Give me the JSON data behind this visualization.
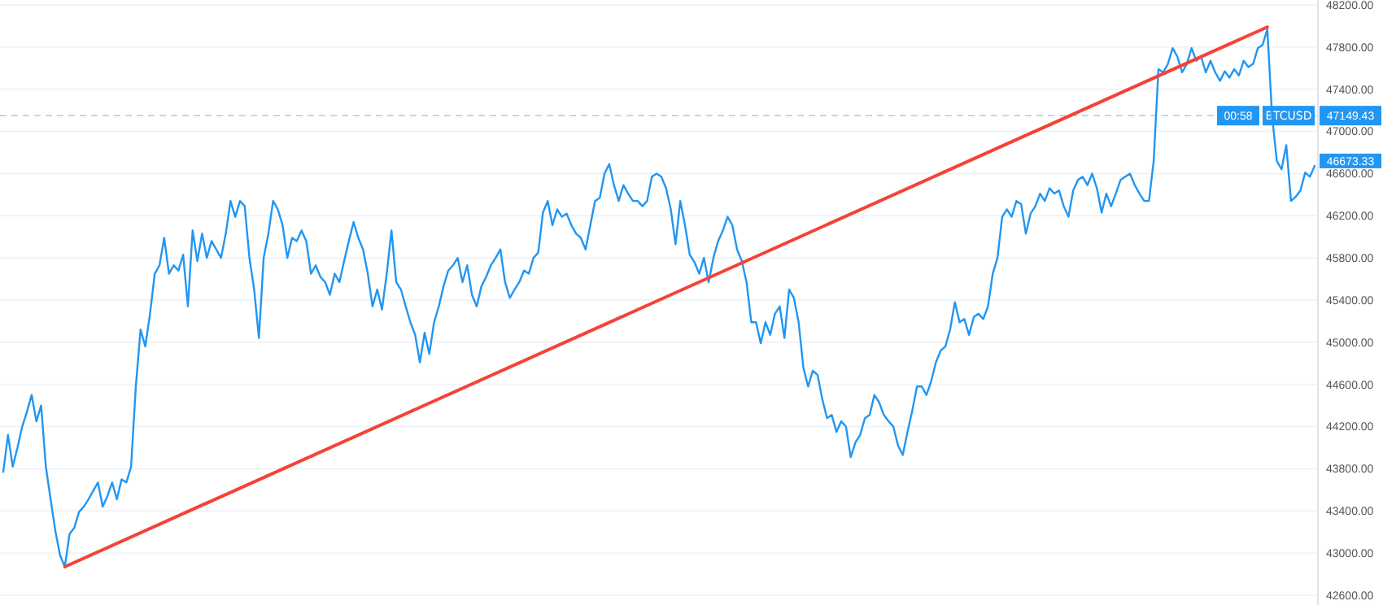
{
  "chart_data": {
    "type": "line",
    "categories": [
      null,
      null,
      null,
      null,
      null,
      null,
      null,
      null,
      null,
      null,
      null,
      null,
      null,
      null,
      null,
      null,
      null,
      null,
      null,
      null,
      null,
      null,
      null,
      null,
      null,
      null,
      null,
      null,
      null,
      null,
      null,
      null,
      null,
      null,
      null,
      null,
      null,
      null,
      null,
      null,
      null,
      null,
      null,
      null,
      null,
      null,
      null,
      null,
      null,
      null,
      null,
      null,
      null,
      null,
      null,
      null,
      null,
      null,
      null,
      null,
      null,
      null,
      null,
      null,
      null,
      null,
      null,
      null,
      null,
      null,
      null,
      null,
      null,
      null,
      null,
      null,
      null,
      null,
      null,
      null,
      null,
      null,
      null,
      null,
      null,
      null,
      null,
      null,
      null,
      null,
      null,
      null,
      null,
      null,
      null,
      null,
      null,
      null,
      null,
      null,
      null,
      null,
      null,
      null,
      null,
      null,
      null,
      null,
      null,
      null,
      null,
      null,
      null,
      null,
      null,
      null,
      null,
      null,
      null,
      null,
      null,
      null,
      null,
      null,
      null,
      null,
      null,
      null,
      null,
      null,
      null,
      null,
      null,
      null,
      null,
      null,
      null,
      null,
      null,
      null,
      null,
      null,
      null,
      null,
      null,
      null,
      null,
      null,
      null,
      null,
      null,
      null,
      null,
      null,
      null,
      null,
      null,
      null,
      null,
      null,
      null,
      null,
      null,
      null,
      null,
      null,
      null,
      null,
      null,
      null,
      null,
      null,
      null,
      null,
      null,
      null,
      null,
      null,
      null,
      null,
      null,
      null,
      null,
      null,
      null,
      null,
      null,
      null,
      null,
      null,
      null,
      null,
      null,
      null,
      null,
      null,
      null,
      null,
      null,
      null,
      null,
      null,
      null,
      null,
      null,
      null,
      null,
      null,
      null,
      null,
      null,
      null,
      null,
      null,
      null,
      null,
      null,
      null,
      null,
      null,
      null,
      null,
      null,
      null,
      null,
      null,
      null,
      null,
      null,
      null,
      null,
      null,
      null,
      null,
      null,
      null,
      null,
      null,
      null,
      null,
      null,
      null,
      null,
      null,
      null,
      null,
      null,
      null,
      null,
      null,
      null,
      null,
      null,
      null,
      null,
      null,
      null,
      null,
      null,
      null,
      null,
      null,
      null,
      null,
      null,
      null,
      null,
      null,
      null,
      null,
      null,
      null,
      null,
      null,
      null,
      null,
      null,
      null
    ],
    "series": [
      {
        "color": "#2196f3",
        "values": [
          43770,
          44120,
          43820,
          44000,
          44200,
          44340,
          44500,
          44250,
          44400,
          43820,
          43510,
          43210,
          42980,
          42870,
          43180,
          43240,
          43390,
          43440,
          43510,
          43590,
          43670,
          43440,
          43540,
          43670,
          43510,
          43700,
          43670,
          43820,
          44580,
          45120,
          44960,
          45270,
          45650,
          45730,
          45990,
          45650,
          45730,
          45680,
          45830,
          45340,
          46060,
          45770,
          46030,
          45800,
          45960,
          45880,
          45800,
          46030,
          46340,
          46190,
          46340,
          46290,
          45800,
          45500,
          45040,
          45800,
          46030,
          46340,
          46260,
          46110,
          45800,
          45990,
          45960,
          46060,
          45960,
          45650,
          45730,
          45620,
          45570,
          45450,
          45650,
          45570,
          45770,
          45960,
          46140,
          45990,
          45880,
          45650,
          45340,
          45500,
          45310,
          45650,
          46060,
          45570,
          45500,
          45340,
          45190,
          45070,
          44810,
          45090,
          44890,
          45190,
          45340,
          45530,
          45680,
          45730,
          45800,
          45570,
          45730,
          45450,
          45340,
          45530,
          45620,
          45730,
          45800,
          45880,
          45570,
          45420,
          45500,
          45570,
          45680,
          45650,
          45800,
          45850,
          46230,
          46340,
          46110,
          46260,
          46190,
          46220,
          46110,
          46030,
          45990,
          45880,
          46110,
          46340,
          46370,
          46600,
          46690,
          46490,
          46340,
          46490,
          46410,
          46340,
          46340,
          46290,
          46340,
          46570,
          46600,
          46570,
          46460,
          46260,
          45930,
          46340,
          46110,
          45830,
          45760,
          45650,
          45800,
          45570,
          45800,
          45960,
          46060,
          46190,
          46110,
          45880,
          45770,
          45570,
          45190,
          45190,
          44990,
          45190,
          45070,
          45270,
          45340,
          45040,
          45500,
          45420,
          45190,
          44760,
          44580,
          44730,
          44690,
          44460,
          44280,
          44310,
          44150,
          44250,
          44200,
          43910,
          44050,
          44120,
          44280,
          44310,
          44500,
          44430,
          44310,
          44250,
          44200,
          44020,
          43930,
          44150,
          44350,
          44580,
          44580,
          44500,
          44630,
          44810,
          44920,
          44960,
          45120,
          45380,
          45190,
          45220,
          45070,
          45240,
          45270,
          45220,
          45340,
          45650,
          45800,
          46190,
          46260,
          46190,
          46340,
          46310,
          46030,
          46220,
          46290,
          46410,
          46340,
          46460,
          46410,
          46440,
          46290,
          46190,
          46440,
          46540,
          46570,
          46490,
          46600,
          46460,
          46230,
          46410,
          46290,
          46410,
          46540,
          46570,
          46600,
          46490,
          46410,
          46340,
          46340,
          46720,
          47590,
          47560,
          47640,
          47790,
          47710,
          47560,
          47640,
          47790,
          47670,
          47710,
          47560,
          47670,
          47560,
          47480,
          47570,
          47510,
          47590,
          47530,
          47670,
          47610,
          47640,
          47790,
          47820,
          47970,
          47150,
          46720,
          46640,
          46870,
          46340,
          46380,
          46440,
          46610,
          46570,
          46673.33
        ]
      },
      {
        "color": "#f44336",
        "values": [
          null,
          null,
          null,
          null,
          null,
          null,
          null,
          null,
          null,
          null,
          null,
          null,
          null,
          42870,
          null,
          null,
          null,
          null,
          null,
          null,
          null,
          null,
          null,
          null,
          null,
          null,
          null,
          null,
          null,
          null,
          null,
          null,
          null,
          null,
          null,
          null,
          null,
          null,
          null,
          null,
          null,
          null,
          null,
          null,
          null,
          null,
          null,
          null,
          null,
          null,
          null,
          null,
          null,
          null,
          null,
          null,
          null,
          null,
          null,
          null,
          null,
          null,
          null,
          null,
          null,
          null,
          null,
          null,
          null,
          null,
          null,
          null,
          null,
          null,
          null,
          null,
          null,
          null,
          null,
          null,
          null,
          null,
          null,
          null,
          null,
          null,
          null,
          null,
          null,
          null,
          null,
          null,
          null,
          null,
          null,
          null,
          null,
          null,
          null,
          null,
          null,
          null,
          null,
          null,
          null,
          null,
          null,
          null,
          null,
          null,
          null,
          null,
          null,
          null,
          null,
          null,
          null,
          null,
          null,
          null,
          null,
          null,
          null,
          null,
          null,
          null,
          null,
          null,
          null,
          null,
          null,
          null,
          null,
          null,
          null,
          null,
          null,
          null,
          null,
          null,
          null,
          null,
          null,
          null,
          null,
          null,
          null,
          null,
          null,
          null,
          null,
          null,
          null,
          null,
          null,
          null,
          null,
          null,
          null,
          null,
          null,
          null,
          null,
          null,
          null,
          null,
          null,
          null,
          null,
          null,
          null,
          null,
          null,
          null,
          null,
          null,
          null,
          null,
          null,
          null,
          null,
          null,
          null,
          null,
          null,
          null,
          null,
          null,
          null,
          null,
          null,
          null,
          null,
          null,
          null,
          null,
          null,
          null,
          null,
          null,
          null,
          null,
          null,
          null,
          null,
          null,
          null,
          null,
          null,
          null,
          null,
          null,
          null,
          null,
          null,
          null,
          null,
          null,
          null,
          null,
          null,
          null,
          null,
          null,
          null,
          null,
          null,
          null,
          null,
          null,
          null,
          null,
          null,
          null,
          null,
          null,
          null,
          null,
          null,
          null,
          null,
          null,
          null,
          null,
          null,
          null,
          null,
          null,
          null,
          null,
          null,
          null,
          null,
          null,
          null,
          null,
          null,
          null,
          null,
          null,
          null,
          null,
          null,
          null,
          null,
          null,
          null,
          47990,
          null,
          null,
          null,
          null,
          null,
          null,
          null,
          null,
          null,
          null
        ]
      }
    ],
    "ylim": [
      42600,
      48200
    ],
    "yticks": [
      {
        "value": 42600,
        "label": "42600.00"
      },
      {
        "value": 43000,
        "label": "43000.00"
      },
      {
        "value": 43400,
        "label": "43400.00"
      },
      {
        "value": 43800,
        "label": "43800.00"
      },
      {
        "value": 44200,
        "label": "44200.00"
      },
      {
        "value": 44600,
        "label": "44600.00"
      },
      {
        "value": 45000,
        "label": "45000.00"
      },
      {
        "value": 45400,
        "label": "45400.00"
      },
      {
        "value": 45800,
        "label": "45800.00"
      },
      {
        "value": 46200,
        "label": "46200.00"
      },
      {
        "value": 46600,
        "label": "46600.00"
      },
      {
        "value": 47000,
        "label": "47000.00"
      },
      {
        "value": 47400,
        "label": "47400.00"
      },
      {
        "value": 47800,
        "label": "47800.00"
      },
      {
        "value": 48200,
        "label": "48200.00"
      }
    ],
    "grid": "y",
    "tick_labels": "y",
    "ref_lines": [
      {
        "axis": "y",
        "value": 47149.43,
        "label": "BTCUSD",
        "color": "#2196f3",
        "line_style": "dashed"
      }
    ],
    "annotations": [
      {
        "text": "47149.43",
        "y": 47149.43
      },
      "00:58",
      "46673.33"
    ]
  }
}
